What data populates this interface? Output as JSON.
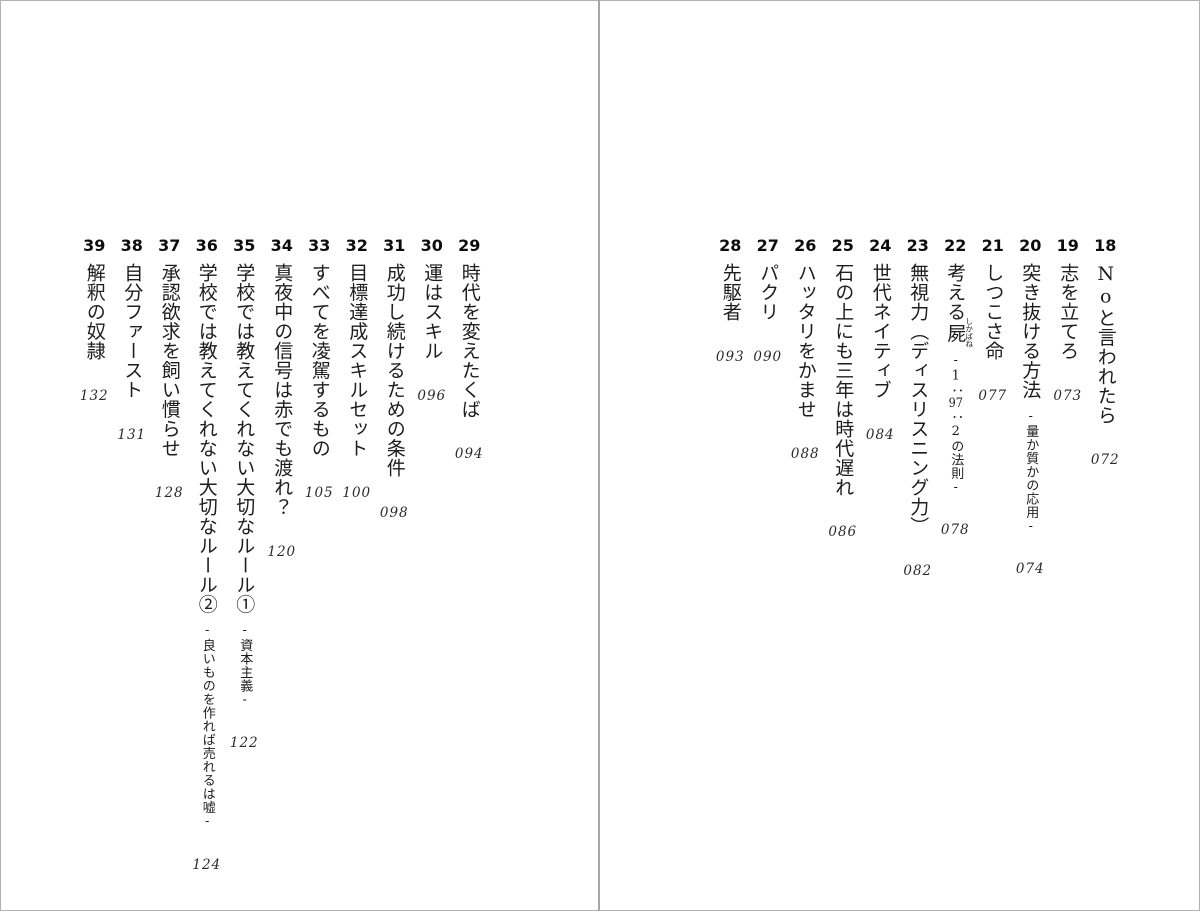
{
  "spread": {
    "kind_label": "目次",
    "divider_color": "#a6a6a6",
    "background_color": "#ffffff",
    "text_color": "#1d1d1d"
  },
  "pages": [
    {
      "side": "right",
      "entries": [
        {
          "num": "18",
          "title": "Noと言われたら",
          "page": "072"
        },
        {
          "num": "19",
          "title": "志を立てろ",
          "page": "073"
        },
        {
          "num": "20",
          "title": "突き抜ける方法",
          "subtitle": "-量か質かの応用-",
          "page": "074"
        },
        {
          "num": "21",
          "title": "しつこさ命",
          "page": "077"
        },
        {
          "num": "22",
          "title": "考える屍",
          "ruby": {
            "base": "屍",
            "reading": "しかばね"
          },
          "subtitle": "-1：97：2の法則-",
          "page": "078"
        },
        {
          "num": "23",
          "title": "無視力（ディスリスニング力）",
          "page": "082"
        },
        {
          "num": "24",
          "title": "世代ネイティブ",
          "page": "084"
        },
        {
          "num": "25",
          "title": "石の上にも三年は時代遅れ",
          "page": "086"
        },
        {
          "num": "26",
          "title": "ハッタリをかませ",
          "page": "088"
        },
        {
          "num": "27",
          "title": "パクリ",
          "page": "090"
        },
        {
          "num": "28",
          "title": "先駆者",
          "page": "093"
        }
      ]
    },
    {
      "side": "left",
      "entries": [
        {
          "num": "29",
          "title": "時代を変えたくば",
          "page": "094"
        },
        {
          "num": "30",
          "title": "運はスキル",
          "page": "096"
        },
        {
          "num": "31",
          "title": "成功し続けるための条件",
          "page": "098"
        },
        {
          "num": "32",
          "title": "目標達成スキルセット",
          "page": "100"
        },
        {
          "num": "33",
          "title": "すべてを凌駕するもの",
          "page": "105"
        },
        {
          "num": "34",
          "title": "真夜中の信号は赤でも渡れ？",
          "page": "120"
        },
        {
          "num": "35",
          "title": "学校では教えてくれない大切なルール①",
          "subtitle": "-資本主義-",
          "page": "122"
        },
        {
          "num": "36",
          "title": "学校では教えてくれない大切なルール②",
          "subtitle": "-良いものを作れば売れるは嘘-",
          "page": "124"
        },
        {
          "num": "37",
          "title": "承認欲求を飼い慣らせ",
          "page": "128"
        },
        {
          "num": "38",
          "title": "自分ファースト",
          "page": "131"
        },
        {
          "num": "39",
          "title": "解釈の奴隷",
          "page": "132"
        }
      ]
    }
  ]
}
